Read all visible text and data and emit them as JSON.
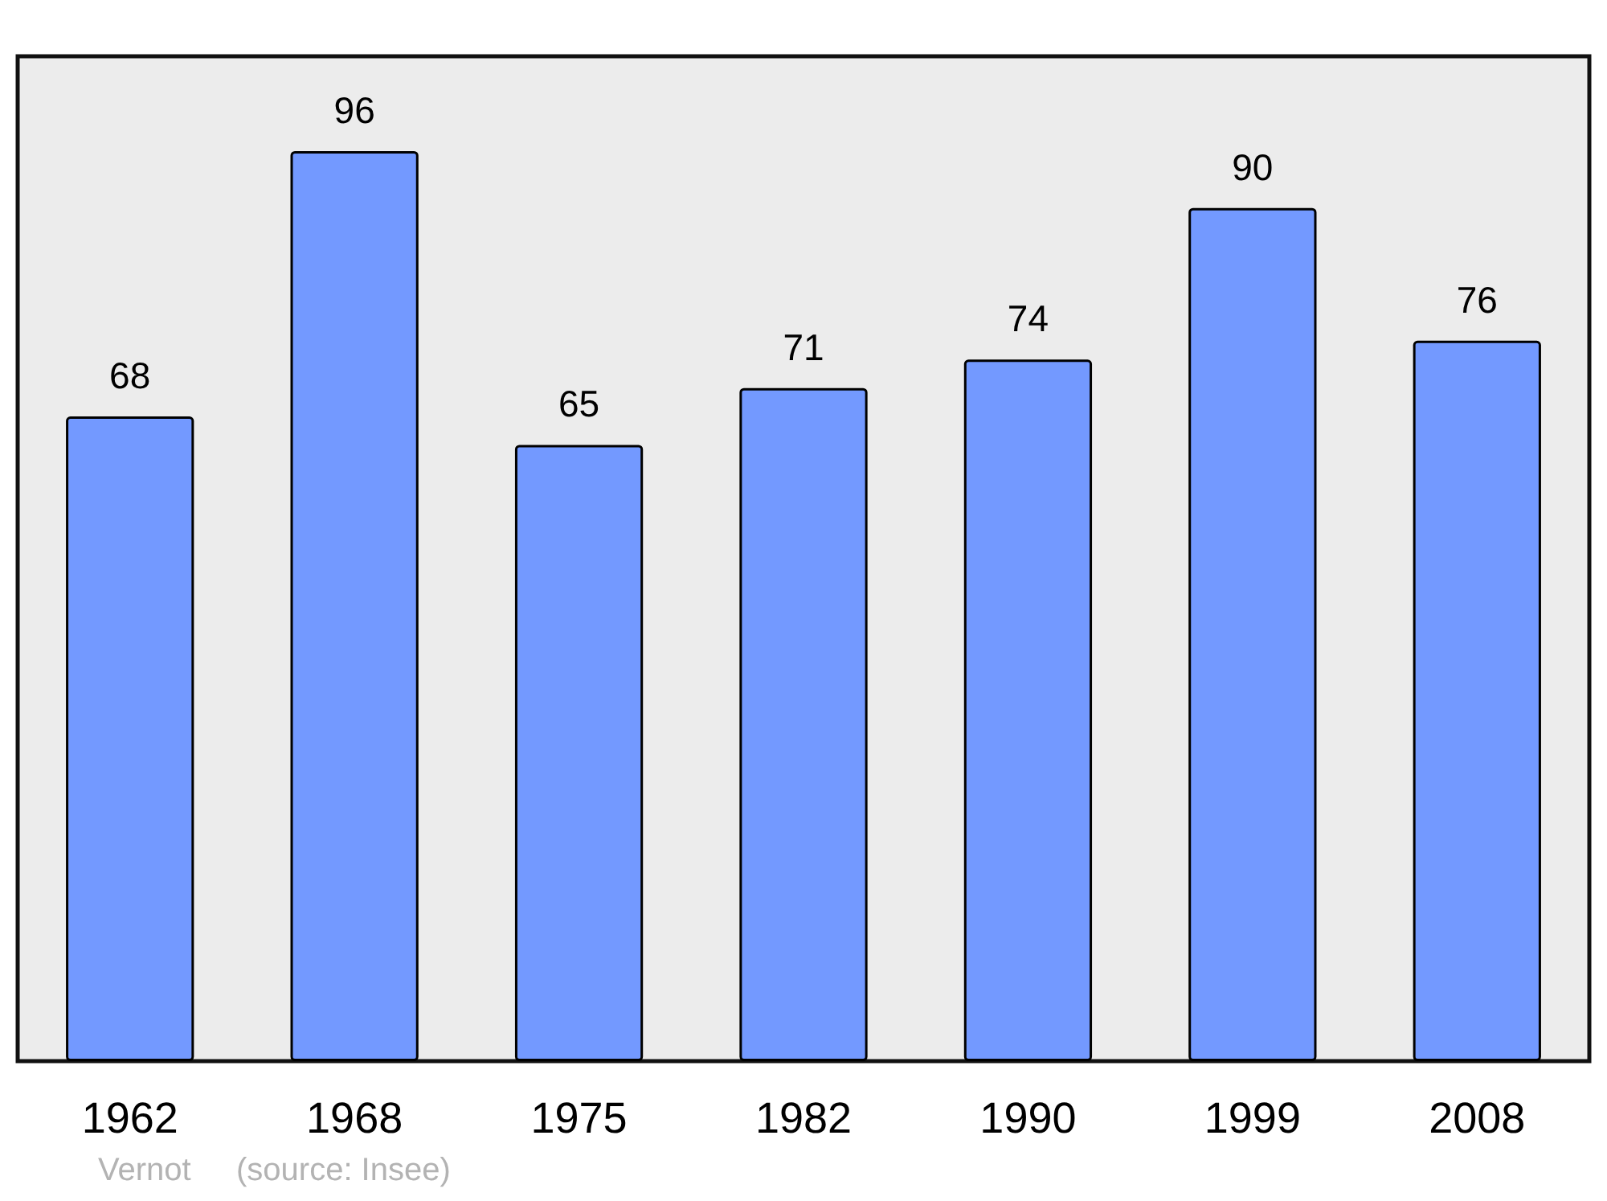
{
  "chart_data": {
    "type": "bar",
    "categories": [
      "1962",
      "1968",
      "1975",
      "1982",
      "1990",
      "1999",
      "2008"
    ],
    "values": [
      68,
      96,
      65,
      71,
      74,
      90,
      76
    ],
    "color": "#7399ff",
    "ylim": [
      0,
      106
    ],
    "tick_labels": "x",
    "data_labels": true,
    "grid": false,
    "annotations": [
      "Vernot",
      "(source: Insee)"
    ]
  }
}
